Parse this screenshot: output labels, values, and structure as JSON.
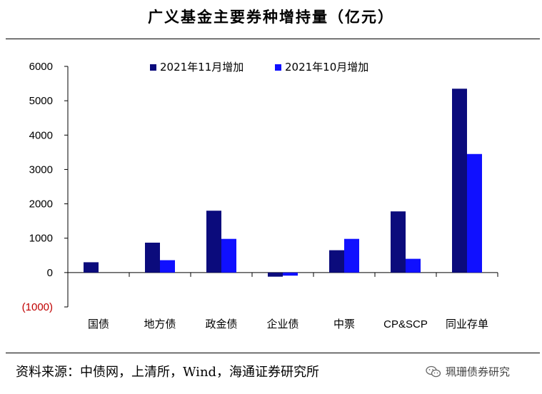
{
  "title": "广义基金主要券种增持量（亿元）",
  "source": "资料来源：中债网，上清所，Wind，海通证券研究所",
  "watermark": "珮珊债券研究",
  "colors": {
    "series1": "#0b0b7c",
    "series2": "#1010ff",
    "negative_tick": "#c00000",
    "axis": "#000000"
  },
  "chart_data": {
    "type": "bar",
    "title": "广义基金主要券种增持量（亿元）",
    "categories": [
      "国债",
      "地方债",
      "政金债",
      "企业债",
      "中票",
      "CP&SCP",
      "同业存单"
    ],
    "series": [
      {
        "name": "2021年11月增加",
        "values": [
          300,
          870,
          1800,
          -120,
          650,
          1780,
          5350
        ]
      },
      {
        "name": "2021年10月增加",
        "values": [
          0,
          360,
          980,
          -90,
          980,
          400,
          3450
        ]
      }
    ],
    "ylim": [
      -1000,
      6000
    ],
    "yticks": [
      -1000,
      0,
      1000,
      2000,
      3000,
      4000,
      5000,
      6000
    ],
    "ytick_labels": [
      "(1000)",
      "0",
      "1000",
      "2000",
      "3000",
      "4000",
      "5000",
      "6000"
    ],
    "legend_placement": "top-center",
    "grid": false,
    "xlabel": "",
    "ylabel": ""
  }
}
